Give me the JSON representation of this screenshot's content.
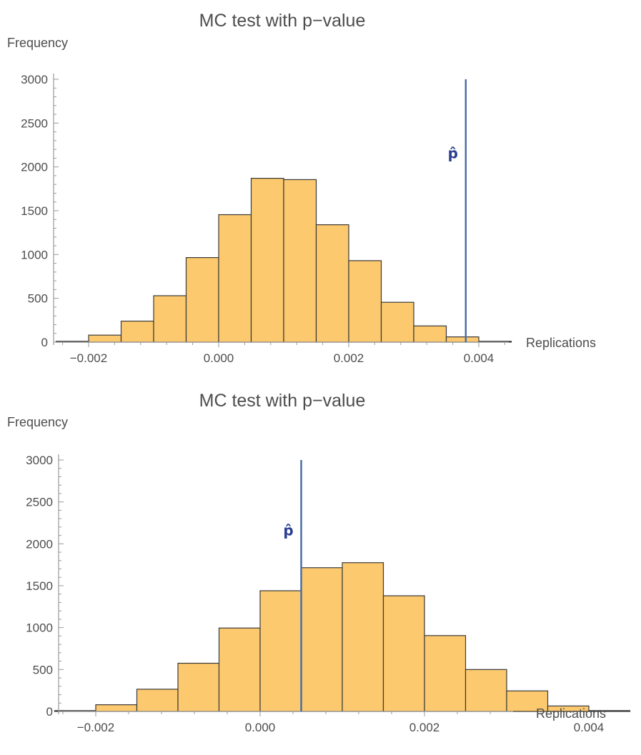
{
  "chart_data": [
    {
      "type": "bar",
      "title": "MC test with p−value",
      "xlabel": "Replications",
      "ylabel": "Frequency",
      "xlim": [
        -0.0035,
        0.0055
      ],
      "ylim": [
        0,
        3000
      ],
      "x_ticks": [
        -0.002,
        0,
        0.002,
        0.004
      ],
      "x_tick_labels": [
        "−0.002",
        "0.000",
        "0.002",
        "0.004"
      ],
      "y_ticks": [
        0,
        500,
        1000,
        1500,
        2000,
        2500,
        3000
      ],
      "y_tick_labels": [
        "0",
        "500",
        "1000",
        "1500",
        "2000",
        "2500",
        "3000"
      ],
      "bin_width": 0.0005,
      "bin_starts": [
        -0.0025,
        -0.002,
        -0.0015,
        -0.001,
        -0.0005,
        0,
        0.0005,
        0.001,
        0.0015,
        0.002,
        0.0025,
        0.003,
        0.0035,
        0.004
      ],
      "values": [
        10,
        80,
        240,
        530,
        965,
        1455,
        1870,
        1855,
        1340,
        930,
        455,
        185,
        60,
        10
      ],
      "bar_color": "#fcc96e",
      "marker": {
        "label": "p̂",
        "x": 0.0038,
        "height": 3000,
        "color": "#4a6fa5"
      }
    },
    {
      "type": "bar",
      "title": "MC test with p−value",
      "xlabel": "Replications",
      "ylabel": "Frequency",
      "xlim": [
        -0.0035,
        0.0055
      ],
      "ylim": [
        0,
        3000
      ],
      "x_ticks": [
        -0.002,
        0,
        0.002,
        0.004
      ],
      "x_tick_labels": [
        "−0.002",
        "0.000",
        "0.002",
        "0.004"
      ],
      "y_ticks": [
        0,
        500,
        1000,
        1500,
        2000,
        2500,
        3000
      ],
      "y_tick_labels": [
        "0",
        "500",
        "1000",
        "1500",
        "2000",
        "2500",
        "3000"
      ],
      "bin_width": 0.0005,
      "bin_starts": [
        -0.0025,
        -0.002,
        -0.0015,
        -0.001,
        -0.0005,
        0,
        0.0005,
        0.001,
        0.0015,
        0.002,
        0.0025,
        0.003,
        0.0035,
        0.004
      ],
      "values": [
        10,
        80,
        265,
        575,
        995,
        1440,
        1715,
        1775,
        1380,
        905,
        500,
        245,
        65,
        10
      ],
      "bar_color": "#fcc96e",
      "marker": {
        "label": "p̂",
        "x": 0.0005,
        "height": 3000,
        "color": "#4a6fa5"
      }
    }
  ]
}
